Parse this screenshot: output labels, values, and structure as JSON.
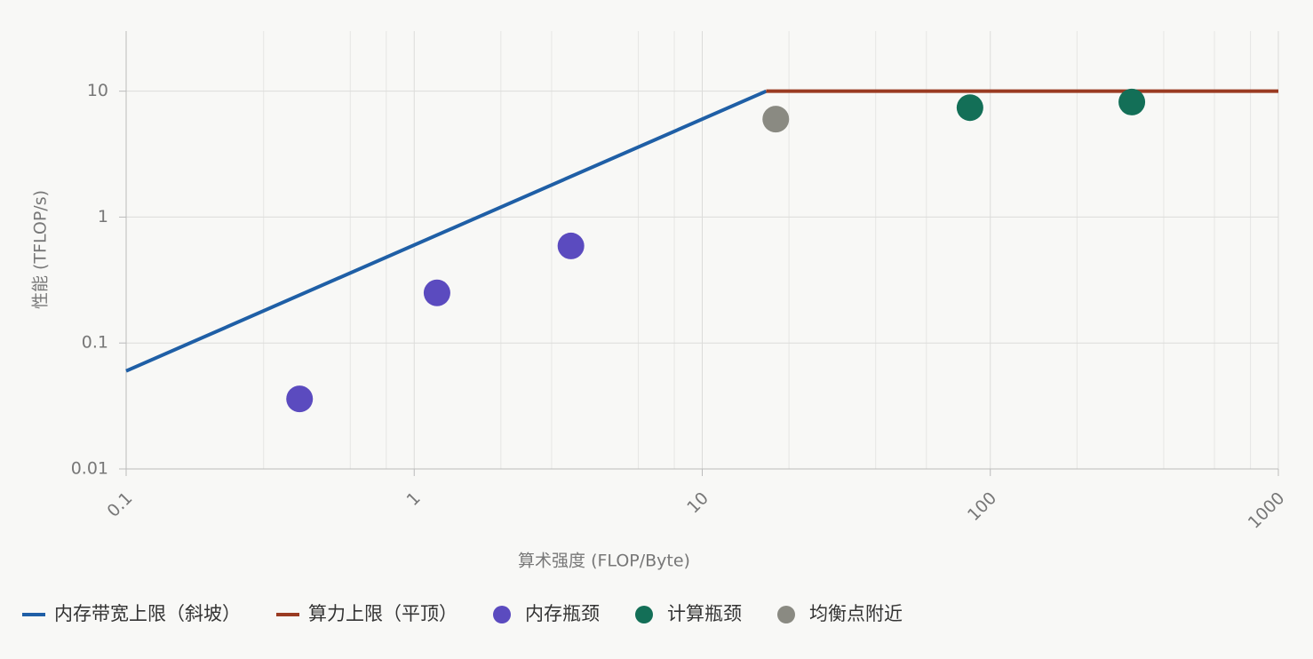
{
  "chart_data": {
    "type": "line",
    "x_label": "算术强度 (FLOP/Byte)",
    "y_label": "性能 (TFLOP/s)",
    "xscale": "log",
    "yscale": "log",
    "grid": true,
    "legend": "bottom",
    "xlim": [
      0.1,
      1000
    ],
    "ylim": [
      0.01,
      30
    ],
    "xticks": [
      0.1,
      1,
      10,
      100,
      1000
    ],
    "xminor": [
      0.3,
      0.6,
      0.8,
      2,
      3,
      6,
      8,
      20,
      40,
      60,
      200,
      400,
      600,
      800
    ],
    "yticks": [
      0.01,
      0.1,
      1,
      10
    ],
    "series": [
      {
        "name": "内存带宽上限（斜坡）",
        "color": "#1f5fa6",
        "style": "line",
        "x": [
          0.1,
          16.67
        ],
        "values": [
          0.06,
          10
        ]
      },
      {
        "name": "算力上限（平顶）",
        "color": "#9a3b22",
        "style": "line",
        "x": [
          16.67,
          1000
        ],
        "values": [
          10,
          10
        ]
      },
      {
        "name": "内存瓶颈",
        "color": "#5b4bbf",
        "style": "point",
        "x": [
          0.4,
          1.2,
          3.5
        ],
        "values": [
          0.036,
          0.25,
          0.59
        ]
      },
      {
        "name": "计算瓶颈",
        "color": "#136f57",
        "style": "point",
        "x": [
          85,
          310
        ],
        "values": [
          7.4,
          8.2
        ]
      },
      {
        "name": "均衡点附近",
        "color": "#8a8a82",
        "style": "point",
        "x": [
          18
        ],
        "values": [
          6
        ]
      }
    ]
  }
}
